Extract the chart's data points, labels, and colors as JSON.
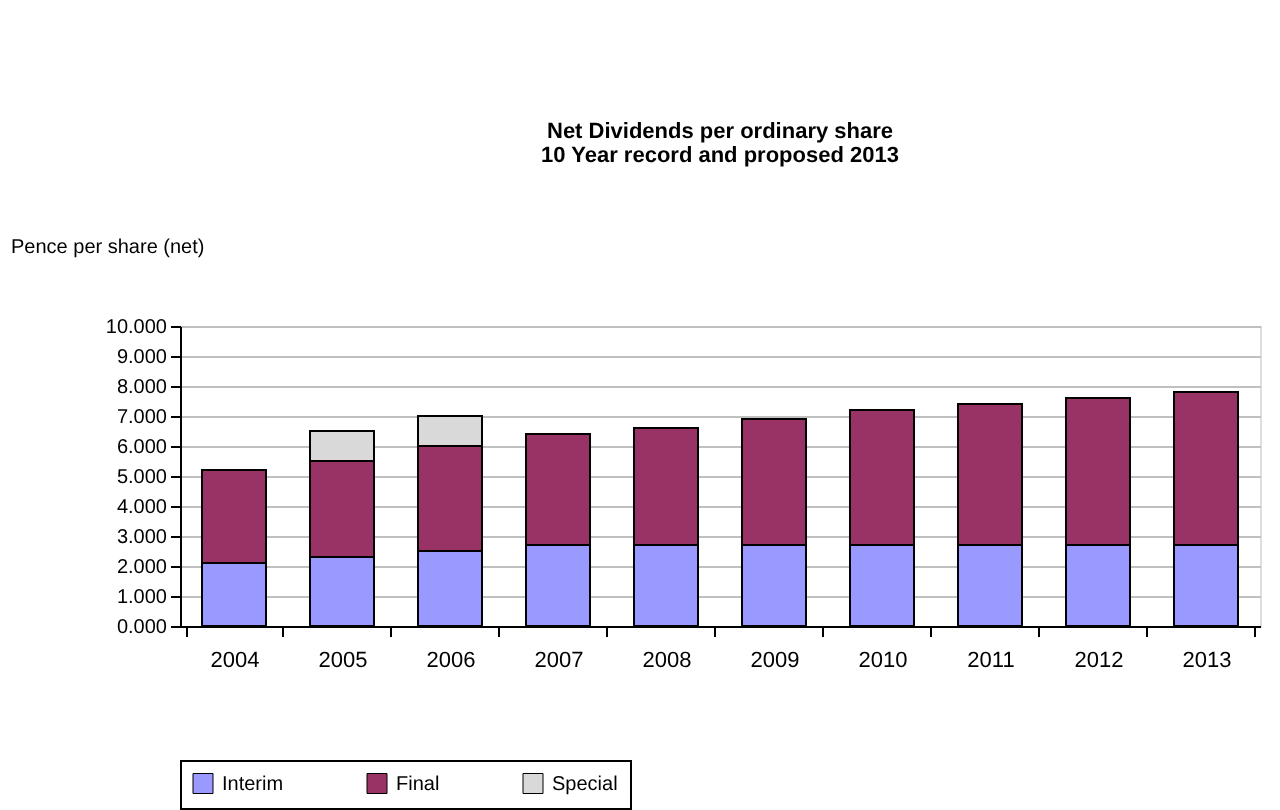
{
  "chart_data": {
    "type": "bar",
    "stacked": true,
    "title": "Net Dividends per ordinary share",
    "subtitle": "10 Year record and proposed 2013",
    "ylabel": "Pence per share (net)",
    "categories": [
      "2004",
      "2005",
      "2006",
      "2007",
      "2008",
      "2009",
      "2010",
      "2011",
      "2012",
      "2013"
    ],
    "series": [
      {
        "name": "Interim",
        "color": "#9999ff",
        "values": [
          2.1,
          2.3,
          2.5,
          2.7,
          2.7,
          2.7,
          2.7,
          2.7,
          2.7,
          2.7
        ]
      },
      {
        "name": "Final",
        "color": "#993366",
        "values": [
          3.1,
          3.2,
          3.5,
          3.7,
          3.9,
          4.2,
          4.5,
          4.7,
          4.9,
          5.1
        ]
      },
      {
        "name": "Special",
        "color": "#d9d9d9",
        "values": [
          null,
          1.0,
          1.0,
          null,
          null,
          null,
          null,
          null,
          null,
          null
        ]
      }
    ],
    "ylim": [
      0,
      10
    ],
    "yticks": [
      {
        "value": 0,
        "label": "0.000"
      },
      {
        "value": 1,
        "label": "1.000"
      },
      {
        "value": 2,
        "label": "2.000"
      },
      {
        "value": 3,
        "label": "3.000"
      },
      {
        "value": 4,
        "label": "4.000"
      },
      {
        "value": 5,
        "label": "5.000"
      },
      {
        "value": 6,
        "label": "6.000"
      },
      {
        "value": 7,
        "label": "7.000"
      },
      {
        "value": 8,
        "label": "8.000"
      },
      {
        "value": 9,
        "label": "9.000"
      },
      {
        "value": 10,
        "label": "10.000"
      }
    ],
    "grid": "y",
    "legend": "bottom"
  }
}
